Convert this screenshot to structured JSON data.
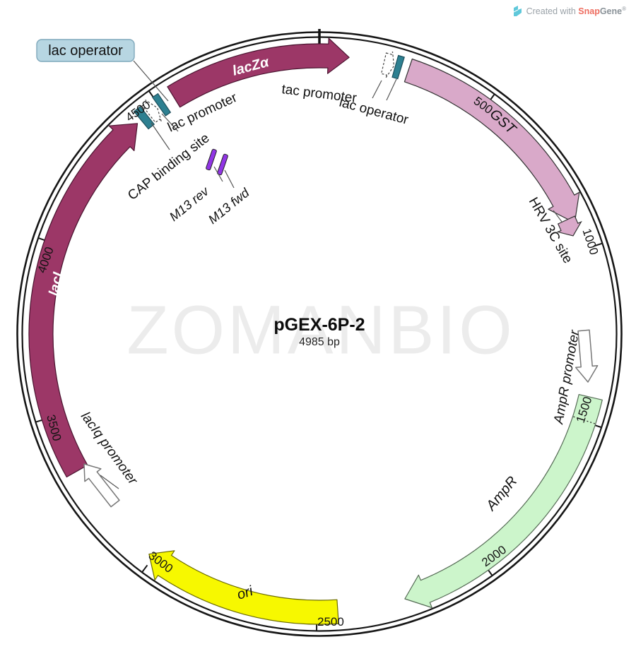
{
  "plasmid": {
    "name": "pGEX-6P-2",
    "size_label": "4985 bp"
  },
  "watermark": "ZOMANBIO",
  "credit": {
    "prefix": "Created with ",
    "brand_a": "Snap",
    "brand_b": "Gene",
    "reg": "®"
  },
  "ticks": [
    "500",
    "1000",
    "1500",
    "2000",
    "2500",
    "3000",
    "3500",
    "4000",
    "4500"
  ],
  "features": [
    {
      "id": "lacZa",
      "label": "lacZα",
      "color": "#9C3767",
      "type": "gene-arrow"
    },
    {
      "id": "tac-promoter",
      "label": "tac promoter",
      "color": "#FFFFFF",
      "type": "promoter-dashed"
    },
    {
      "id": "lac-operator-2",
      "label": "lac operator",
      "color": "#2E8091",
      "type": "operator-block"
    },
    {
      "id": "GST",
      "label": "GST",
      "color": "#D9A9C9",
      "type": "gene-arrow"
    },
    {
      "id": "hrv-3c-site",
      "label": "HRV 3C site",
      "color": "#D9A9C9",
      "type": "site-arrow"
    },
    {
      "id": "ampr-promoter",
      "label": "AmpR promoter",
      "color": "#FFFFFF",
      "type": "promoter-arrow"
    },
    {
      "id": "AmpR",
      "label": "AmpR",
      "color": "#CCF5CB",
      "type": "gene-arrow"
    },
    {
      "id": "ori",
      "label": "ori",
      "color": "#F7F800",
      "type": "origin-arrow"
    },
    {
      "id": "laciq-promoter",
      "label": "lacIq promoter",
      "color": "#FFFFFF",
      "type": "promoter-arrow"
    },
    {
      "id": "lacI",
      "label": "lacI",
      "color": "#9C3767",
      "type": "gene-arrow"
    },
    {
      "id": "cap-binding-site",
      "label": "CAP binding site",
      "color": "#2E8091",
      "type": "site-block"
    },
    {
      "id": "lac-promoter",
      "label": "lac promoter",
      "color": "#FFFFFF",
      "type": "promoter-dashed"
    },
    {
      "id": "m13-rev",
      "label": "M13 rev",
      "color": "#9135E5",
      "type": "primer"
    },
    {
      "id": "m13-fwd",
      "label": "M13 fwd",
      "color": "#9135E5",
      "type": "primer"
    },
    {
      "id": "lac-operator-1",
      "label": "lac operator",
      "color": "#2E8091",
      "type": "operator-block",
      "highlighted": true,
      "highlight_bg": "#b7d6e2"
    }
  ]
}
